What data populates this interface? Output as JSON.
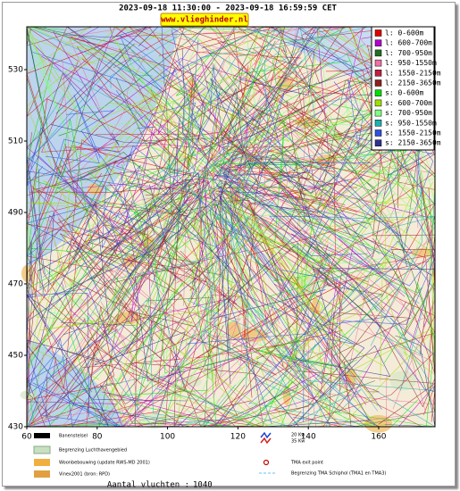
{
  "header": {
    "title": "2023-09-18 11:30:00 - 2023-09-18 16:59:59 CET",
    "site": "www.vlieghinder.nl"
  },
  "axes": {
    "xlim": [
      60,
      176
    ],
    "ylim": [
      430,
      542
    ],
    "xticks": [
      60,
      80,
      100,
      120,
      140,
      160
    ],
    "yticks": [
      430,
      450,
      470,
      490,
      510,
      530
    ]
  },
  "legend": [
    {
      "label": "l: 0-600m",
      "color": "#e00000"
    },
    {
      "label": "l: 600-700m",
      "color": "#b000d0"
    },
    {
      "label": "l: 700-950m",
      "color": "#207020"
    },
    {
      "label": "l: 950-1550m",
      "color": "#f070a0"
    },
    {
      "label": "l: 1550-2150m",
      "color": "#c02040"
    },
    {
      "label": "l: 2150-3650m",
      "color": "#902020"
    },
    {
      "label": "s: 0-600m",
      "color": "#00e000"
    },
    {
      "label": "s: 600-700m",
      "color": "#a0e000"
    },
    {
      "label": "s: 700-950m",
      "color": "#80ff80"
    },
    {
      "label": "s: 950-1550m",
      "color": "#20b0b0"
    },
    {
      "label": "s: 1550-2150m",
      "color": "#3050e0"
    },
    {
      "label": "s: 2150-3650m",
      "color": "#303090"
    }
  ],
  "map_legend": {
    "runways": "Banenstelsel",
    "airport_boundary": "Begrenzing Luchthavengebied",
    "housing": "Woonbebouwing (update RWS-MD 2001)",
    "vinex": "Vinex2001 (bron: RPD)",
    "contour_20": "20 Kw",
    "contour_35": "35 Kw",
    "tma_exit": "TMA exit point",
    "tma_boundary": "Begrenzing TMA Schiphol  (TMA1 en TMA3)"
  },
  "footer": {
    "label": "Aantal vluchten :",
    "count": 1040
  }
}
